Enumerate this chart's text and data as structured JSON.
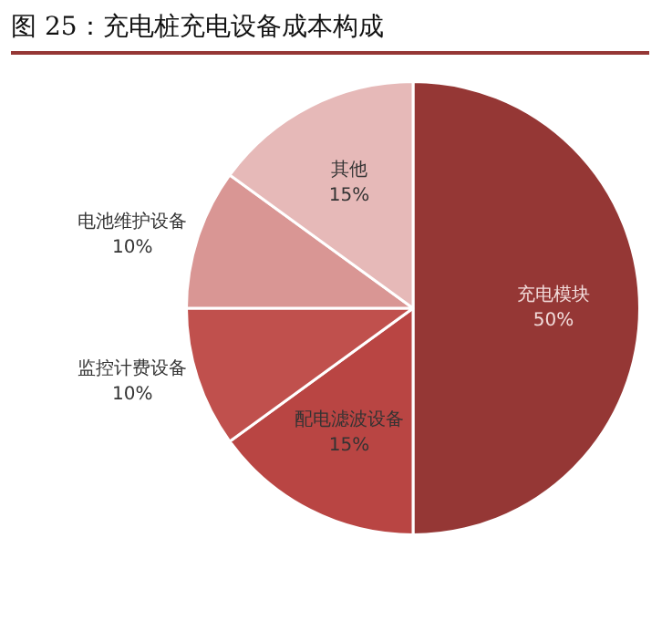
{
  "chart_data": {
    "type": "pie",
    "title": "图 25：充电桩充电设备成本构成",
    "categories": [
      "充电模块",
      "配电滤波设备",
      "监控计费设备",
      "电池维护设备",
      "其他"
    ],
    "values": [
      50,
      15,
      10,
      10,
      15
    ],
    "colors": [
      "#953735",
      "#b94543",
      "#c0504d",
      "#d99694",
      "#e6b9b8"
    ],
    "value_labels": [
      "50%",
      "15%",
      "10%",
      "10%",
      "15%"
    ],
    "legend": false
  }
}
